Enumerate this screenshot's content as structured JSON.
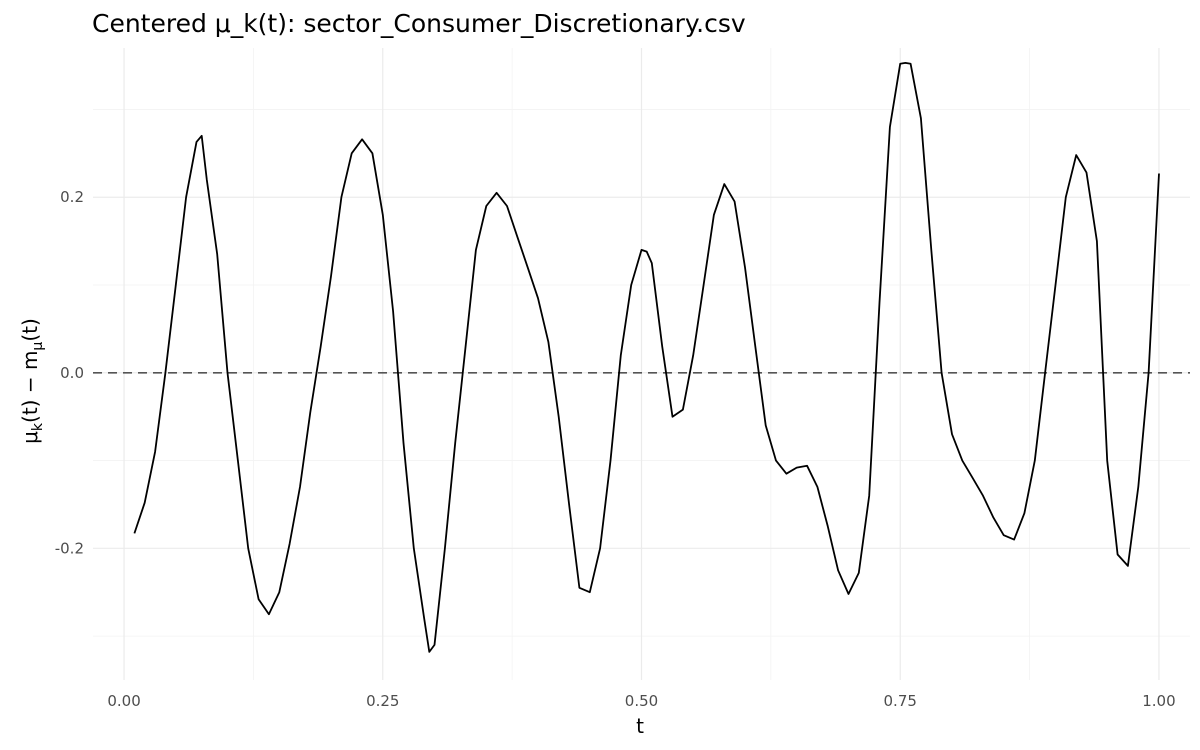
{
  "chart_data": {
    "type": "line",
    "title": "Centered μ_k(t): sector_Consumer_Discretionary.csv",
    "xlabel": "t",
    "ylabel": "μk(t) − mμ(t)",
    "ylabel_parts": {
      "mu": "μ",
      "k": "k",
      "open": "(t) − m",
      "sub_mu": "μ",
      "close": "(t)"
    },
    "xlim": [
      -0.03,
      1.03
    ],
    "ylim": [
      -0.35,
      0.37
    ],
    "x_ticks": [
      0.0,
      0.25,
      0.5,
      0.75,
      1.0
    ],
    "x_tick_labels": [
      "0.00",
      "0.25",
      "0.50",
      "0.75",
      "1.00"
    ],
    "y_ticks": [
      -0.2,
      0.0,
      0.2
    ],
    "y_tick_labels": [
      "-0.2",
      "0.0",
      "0.2"
    ],
    "grid": true,
    "reference_line": {
      "y": 0.0,
      "style": "dashed"
    },
    "series": [
      {
        "color": "#000000",
        "x": [
          0.01,
          0.02,
          0.03,
          0.04,
          0.05,
          0.06,
          0.07,
          0.075,
          0.08,
          0.09,
          0.1,
          0.11,
          0.12,
          0.13,
          0.14,
          0.15,
          0.16,
          0.17,
          0.18,
          0.19,
          0.2,
          0.21,
          0.22,
          0.23,
          0.24,
          0.25,
          0.26,
          0.27,
          0.28,
          0.29,
          0.295,
          0.3,
          0.31,
          0.32,
          0.33,
          0.34,
          0.35,
          0.36,
          0.37,
          0.38,
          0.39,
          0.4,
          0.41,
          0.42,
          0.43,
          0.44,
          0.45,
          0.46,
          0.47,
          0.48,
          0.49,
          0.5,
          0.505,
          0.51,
          0.52,
          0.53,
          0.54,
          0.55,
          0.56,
          0.57,
          0.58,
          0.59,
          0.6,
          0.61,
          0.62,
          0.63,
          0.64,
          0.65,
          0.66,
          0.67,
          0.68,
          0.69,
          0.7,
          0.71,
          0.72,
          0.73,
          0.74,
          0.75,
          0.755,
          0.76,
          0.77,
          0.78,
          0.79,
          0.8,
          0.81,
          0.82,
          0.83,
          0.84,
          0.85,
          0.86,
          0.87,
          0.88,
          0.89,
          0.9,
          0.91,
          0.92,
          0.93,
          0.94,
          0.95,
          0.96,
          0.97,
          0.98,
          0.99,
          1.0
        ],
        "y": [
          -0.183,
          -0.148,
          -0.09,
          0.0,
          0.1,
          0.2,
          0.263,
          0.27,
          0.22,
          0.135,
          0.0,
          -0.1,
          -0.2,
          -0.258,
          -0.275,
          -0.25,
          -0.195,
          -0.13,
          -0.045,
          0.03,
          0.11,
          0.2,
          0.25,
          0.266,
          0.25,
          0.18,
          0.07,
          -0.08,
          -0.2,
          -0.28,
          -0.318,
          -0.31,
          -0.2,
          -0.08,
          0.03,
          0.14,
          0.19,
          0.205,
          0.19,
          0.155,
          0.12,
          0.085,
          0.035,
          -0.05,
          -0.15,
          -0.245,
          -0.25,
          -0.2,
          -0.1,
          0.02,
          0.1,
          0.14,
          0.138,
          0.125,
          0.03,
          -0.05,
          -0.042,
          0.02,
          0.1,
          0.18,
          0.215,
          0.195,
          0.12,
          0.03,
          -0.06,
          -0.1,
          -0.115,
          -0.108,
          -0.106,
          -0.13,
          -0.175,
          -0.225,
          -0.252,
          -0.228,
          -0.14,
          0.08,
          0.28,
          0.352,
          0.353,
          0.352,
          0.29,
          0.14,
          0.0,
          -0.07,
          -0.1,
          -0.12,
          -0.14,
          -0.165,
          -0.185,
          -0.19,
          -0.16,
          -0.1,
          0.0,
          0.1,
          0.2,
          0.248,
          0.228,
          0.15,
          -0.1,
          -0.207,
          -0.22,
          -0.13,
          0.0,
          0.227
        ]
      }
    ]
  }
}
